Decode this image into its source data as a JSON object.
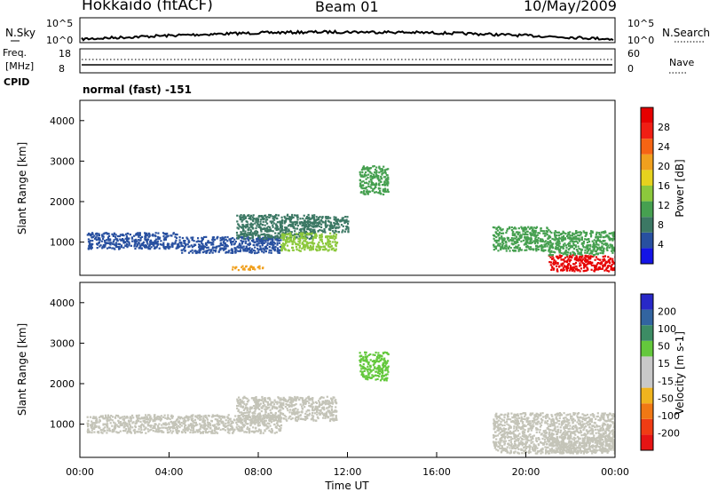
{
  "header": {
    "station": "Hokkaido (fitACF)",
    "beam": "Beam 01",
    "date": "10/May/2009"
  },
  "noise_panel": {
    "left_label": "N.Sky",
    "right_label": "N.Search",
    "left_ticks": [
      "10^5",
      "10^0"
    ],
    "right_ticks": [
      "10^5",
      "10^0"
    ]
  },
  "freq_panel": {
    "left_label_1": "Freq.",
    "left_label_2": "[MHz]",
    "cpid_label": "CPID",
    "left_ticks": [
      "18",
      "8"
    ],
    "right_ticks": [
      "60",
      "0"
    ],
    "right_label": "Nave",
    "mode_text": "normal (fast) -151"
  },
  "colors": {
    "power_scale": [
      "#1414e6",
      "#2850a0",
      "#3c7864",
      "#46a050",
      "#8cc83c",
      "#e6d21e",
      "#f0a01e",
      "#f56414",
      "#f01e14",
      "#e60000"
    ],
    "velocity_scale": [
      "#2828c8",
      "#3264a0",
      "#3c8c64",
      "#64c83c",
      "#c8c8c8",
      "#c8c8c8",
      "#f0b41e",
      "#f07814",
      "#f03c14",
      "#e61414"
    ],
    "ground_scatter": "#c4c4b8"
  },
  "chart_data": [
    {
      "type": "heatmap",
      "title": "",
      "ylabel": "Slant Range [km]",
      "xlabel": "",
      "x_ticks": [
        "00:00",
        "04:00",
        "08:00",
        "12:00",
        "16:00",
        "20:00",
        "00:00"
      ],
      "y_ticks": [
        "1000",
        "2000",
        "3000",
        "4000"
      ],
      "ylim": [
        180,
        4500
      ],
      "colorbar": {
        "label": "Power [dB]",
        "ticks": [
          "4",
          "8",
          "12",
          "16",
          "20",
          "24",
          "28"
        ],
        "range": [
          0,
          30
        ]
      },
      "regions": [
        {
          "t": [
            0.3,
            4.5
          ],
          "r": [
            850,
            1250
          ],
          "value": 4
        },
        {
          "t": [
            4.5,
            9.0
          ],
          "r": [
            750,
            1150
          ],
          "value": 5
        },
        {
          "t": [
            7.0,
            10.5
          ],
          "r": [
            1100,
            1700
          ],
          "value": 7
        },
        {
          "t": [
            9.0,
            11.5
          ],
          "r": [
            800,
            1250
          ],
          "value": 12
        },
        {
          "t": [
            12.5,
            13.8
          ],
          "r": [
            2200,
            2900
          ],
          "value": 10
        },
        {
          "t": [
            10.0,
            12.0
          ],
          "r": [
            1250,
            1650
          ],
          "value": 6
        },
        {
          "t": [
            18.5,
            21.0
          ],
          "r": [
            800,
            1400
          ],
          "value": 9
        },
        {
          "t": [
            21.0,
            24.0
          ],
          "r": [
            300,
            700
          ],
          "value": 27
        },
        {
          "t": [
            21.0,
            24.0
          ],
          "r": [
            700,
            1300
          ],
          "value": 11
        },
        {
          "t": [
            6.8,
            8.2
          ],
          "r": [
            330,
            430
          ],
          "value": 20
        }
      ]
    },
    {
      "type": "heatmap",
      "title": "",
      "ylabel": "Slant Range [km]",
      "xlabel": "Time UT",
      "x_ticks": [
        "00:00",
        "04:00",
        "08:00",
        "12:00",
        "16:00",
        "20:00",
        "00:00"
      ],
      "y_ticks": [
        "1000",
        "2000",
        "3000",
        "4000"
      ],
      "ylim": [
        180,
        4500
      ],
      "colorbar": {
        "label": "Velocity [m s-1]",
        "ticks": [
          "200",
          "100",
          "50",
          "15",
          "-15",
          "-50",
          "-100",
          "-200"
        ],
        "range": [
          -250,
          250
        ]
      },
      "regions": [
        {
          "t": [
            0.3,
            9.0
          ],
          "r": [
            800,
            1250
          ],
          "value": "ground"
        },
        {
          "t": [
            7.0,
            11.5
          ],
          "r": [
            1100,
            1700
          ],
          "value": "ground"
        },
        {
          "t": [
            12.5,
            13.8
          ],
          "r": [
            2100,
            2800
          ],
          "value": 60
        },
        {
          "t": [
            18.5,
            24.0
          ],
          "r": [
            300,
            1300
          ],
          "value": "ground"
        },
        {
          "t": [
            21.0,
            24.0
          ],
          "r": [
            300,
            700
          ],
          "value": "ground"
        }
      ]
    }
  ]
}
